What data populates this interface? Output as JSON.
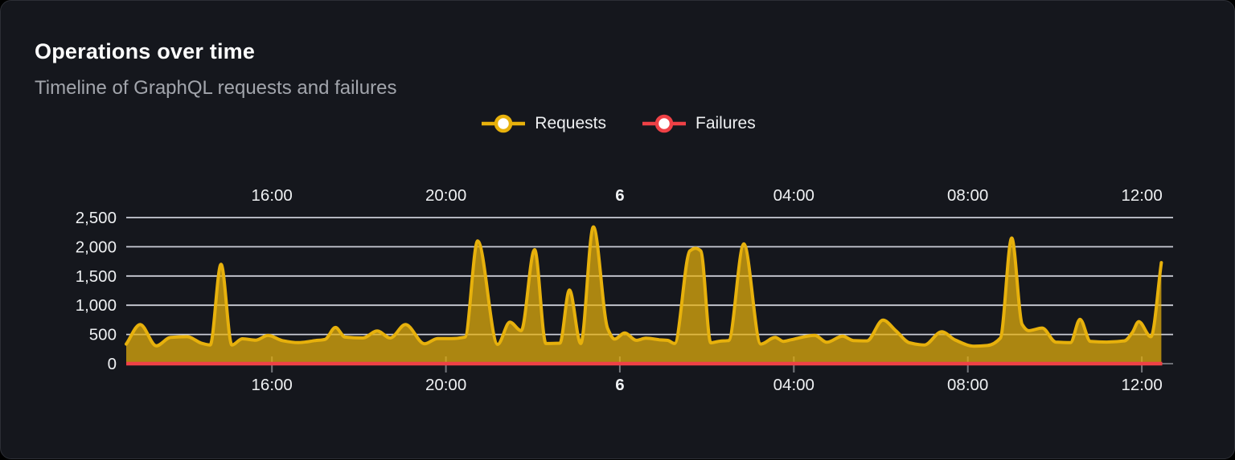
{
  "panel": {
    "title": "Operations over time",
    "subtitle": "Timeline of GraphQL requests and failures"
  },
  "legend": {
    "items": [
      {
        "id": "requests",
        "label": "Requests",
        "color": "#e7b10c"
      },
      {
        "id": "failures",
        "label": "Failures",
        "color": "#ef4146"
      }
    ]
  },
  "colors": {
    "background": "#15171d",
    "border": "#2c2e35",
    "grid": "#d6d8e2",
    "axis_line": "#6d6f75",
    "tick": "#75777d",
    "axis_text": "#eef0f2",
    "requests": "#e7b10c",
    "failures": "#ef4146"
  },
  "chart_data": {
    "type": "area",
    "title": "Operations over time",
    "xlabel": "",
    "ylabel": "",
    "x_unit": "hours-of-day, 24 = midnight start of day 6",
    "x_range": [
      12.65,
      36.72
    ],
    "ylim": [
      0,
      2500
    ],
    "grid": true,
    "legend_position": "top-center",
    "x_ticks": [
      {
        "t": 16,
        "label": "16:00",
        "bold": false
      },
      {
        "t": 20,
        "label": "20:00",
        "bold": false
      },
      {
        "t": 24,
        "label": "6",
        "bold": true
      },
      {
        "t": 28,
        "label": "04:00",
        "bold": false
      },
      {
        "t": 32,
        "label": "08:00",
        "bold": false
      },
      {
        "t": 36,
        "label": "12:00",
        "bold": false
      }
    ],
    "y_ticks": [
      {
        "v": 0,
        "label": "0"
      },
      {
        "v": 500,
        "label": "500"
      },
      {
        "v": 1000,
        "label": "1,000"
      },
      {
        "v": 1500,
        "label": "1,500"
      },
      {
        "v": 2000,
        "label": "2,000"
      },
      {
        "v": 2500,
        "label": "2,500"
      }
    ],
    "series": [
      {
        "name": "Requests",
        "color": "#e7b10c",
        "fill_opacity": 0.72,
        "points": [
          [
            12.65,
            335
          ],
          [
            12.97,
            670
          ],
          [
            13.34,
            305
          ],
          [
            13.67,
            450
          ],
          [
            14.05,
            462
          ],
          [
            14.39,
            347
          ],
          [
            14.58,
            320
          ],
          [
            14.83,
            1700
          ],
          [
            15.08,
            320
          ],
          [
            15.32,
            426
          ],
          [
            15.63,
            402
          ],
          [
            15.91,
            485
          ],
          [
            16.24,
            394
          ],
          [
            16.61,
            360
          ],
          [
            17.0,
            395
          ],
          [
            17.22,
            415
          ],
          [
            17.46,
            620
          ],
          [
            17.68,
            455
          ],
          [
            18.09,
            440
          ],
          [
            18.42,
            560
          ],
          [
            18.72,
            440
          ],
          [
            19.07,
            670
          ],
          [
            19.51,
            340
          ],
          [
            19.81,
            430
          ],
          [
            20.12,
            430
          ],
          [
            20.44,
            455
          ],
          [
            20.73,
            2100
          ],
          [
            21.19,
            330
          ],
          [
            21.47,
            710
          ],
          [
            21.73,
            565
          ],
          [
            22.04,
            1950
          ],
          [
            22.3,
            345
          ],
          [
            22.62,
            350
          ],
          [
            22.84,
            1260
          ],
          [
            23.1,
            345
          ],
          [
            23.39,
            2340
          ],
          [
            23.72,
            600
          ],
          [
            23.88,
            420
          ],
          [
            24.11,
            525
          ],
          [
            24.38,
            400
          ],
          [
            24.6,
            435
          ],
          [
            24.9,
            410
          ],
          [
            25.1,
            398
          ],
          [
            25.26,
            345
          ],
          [
            25.61,
            1930
          ],
          [
            25.74,
            1975
          ],
          [
            25.86,
            1930
          ],
          [
            26.09,
            357
          ],
          [
            26.3,
            385
          ],
          [
            26.5,
            395
          ],
          [
            26.85,
            2050
          ],
          [
            27.24,
            335
          ],
          [
            27.57,
            450
          ],
          [
            27.76,
            382
          ],
          [
            27.94,
            410
          ],
          [
            28.48,
            485
          ],
          [
            28.76,
            367
          ],
          [
            29.12,
            470
          ],
          [
            29.37,
            396
          ],
          [
            29.68,
            390
          ],
          [
            30.05,
            745
          ],
          [
            30.35,
            560
          ],
          [
            30.66,
            357
          ],
          [
            31.0,
            320
          ],
          [
            31.4,
            545
          ],
          [
            31.71,
            405
          ],
          [
            32.14,
            300
          ],
          [
            32.45,
            310
          ],
          [
            32.75,
            440
          ],
          [
            33.01,
            2150
          ],
          [
            33.25,
            670
          ],
          [
            33.4,
            565
          ],
          [
            33.71,
            610
          ],
          [
            34.02,
            370
          ],
          [
            34.36,
            360
          ],
          [
            34.58,
            760
          ],
          [
            34.82,
            380
          ],
          [
            35.19,
            370
          ],
          [
            35.6,
            390
          ],
          [
            35.78,
            530
          ],
          [
            35.93,
            720
          ],
          [
            36.21,
            460
          ],
          [
            36.45,
            1730
          ]
        ]
      },
      {
        "name": "Failures",
        "color": "#ef4146",
        "fill_opacity": 0,
        "points": [
          [
            12.65,
            0
          ],
          [
            36.47,
            0
          ]
        ]
      }
    ]
  }
}
